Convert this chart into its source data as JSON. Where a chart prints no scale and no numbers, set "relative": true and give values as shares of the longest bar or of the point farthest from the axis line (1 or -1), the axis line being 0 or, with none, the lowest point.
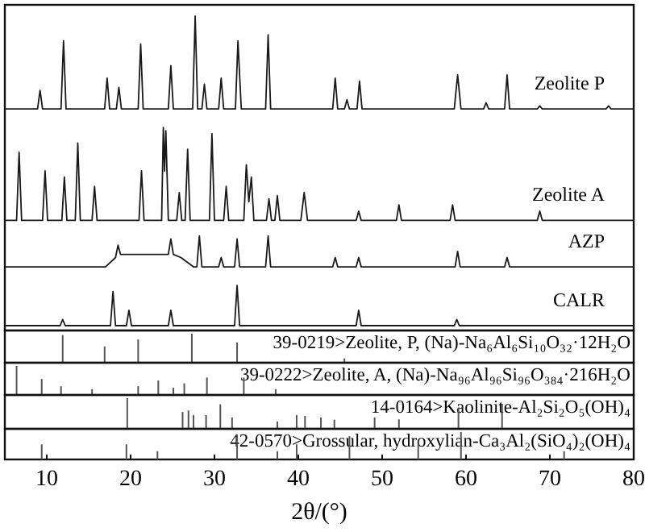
{
  "chart_data": [
    {
      "type": "line",
      "relative": true,
      "xlim": [
        5,
        80
      ],
      "tick_labels": false,
      "series": [
        {
          "name": "Zeolite P",
          "color": "#1a1a1a",
          "x": [
            5,
            8.9,
            9.2,
            9.5,
            11.7,
            12.0,
            12.3,
            16.9,
            17.2,
            17.5,
            18.3,
            18.6,
            18.9,
            20.9,
            21.2,
            21.5,
            24.5,
            24.8,
            25.1,
            27.4,
            27.7,
            28.0,
            28.5,
            28.8,
            29.1,
            30.5,
            30.8,
            31.1,
            32.5,
            32.8,
            33.2,
            36.1,
            36.4,
            36.7,
            44.1,
            44.4,
            44.7,
            45.5,
            45.8,
            46.1,
            47.0,
            47.3,
            47.6,
            58.6,
            59.0,
            59.4,
            62.1,
            62.4,
            62.7,
            64.6,
            64.9,
            65.2,
            68.5,
            68.8,
            69.1,
            76.7,
            77.0,
            77.3,
            80
          ],
          "values": [
            0.7,
            0.7,
            0.76,
            0.7,
            0.7,
            0.92,
            0.7,
            0.7,
            0.8,
            0.7,
            0.7,
            0.77,
            0.7,
            0.7,
            0.91,
            0.7,
            0.7,
            0.84,
            0.7,
            0.7,
            1.0,
            0.7,
            0.7,
            0.78,
            0.7,
            0.7,
            0.8,
            0.7,
            0.7,
            0.92,
            0.7,
            0.7,
            0.94,
            0.7,
            0.7,
            0.8,
            0.7,
            0.7,
            0.73,
            0.7,
            0.7,
            0.79,
            0.7,
            0.7,
            0.81,
            0.7,
            0.7,
            0.72,
            0.7,
            0.7,
            0.81,
            0.7,
            0.7,
            0.71,
            0.7,
            0.7,
            0.71,
            0.7,
            0.7
          ]
        },
        {
          "name": "Zeolite A",
          "color": "#1a1a1a",
          "x": [
            5,
            6.4,
            6.7,
            7.0,
            9.5,
            9.8,
            10.1,
            11.8,
            12.1,
            12.4,
            13.4,
            13.7,
            14.0,
            15.4,
            15.7,
            16.0,
            21.0,
            21.3,
            21.6,
            23.7,
            23.9,
            24.05,
            24.2,
            24.5,
            25.5,
            25.8,
            26.1,
            26.5,
            26.8,
            27.1,
            29.4,
            29.7,
            30.0,
            31.1,
            31.4,
            31.7,
            33.5,
            33.8,
            34.1,
            34.4,
            34.7,
            36.2,
            36.5,
            36.8,
            37.2,
            37.5,
            37.8,
            40.3,
            40.7,
            41.1,
            46.9,
            47.2,
            47.5,
            51.7,
            52.0,
            52.3,
            58.1,
            58.4,
            58.7,
            68.5,
            68.8,
            69.1,
            80
          ],
          "values": [
            0.34,
            0.34,
            0.56,
            0.34,
            0.34,
            0.5,
            0.34,
            0.34,
            0.48,
            0.34,
            0.34,
            0.59,
            0.34,
            0.34,
            0.45,
            0.34,
            0.34,
            0.5,
            0.34,
            0.34,
            0.64,
            0.5,
            0.63,
            0.34,
            0.34,
            0.43,
            0.34,
            0.34,
            0.57,
            0.34,
            0.34,
            0.62,
            0.34,
            0.34,
            0.45,
            0.34,
            0.34,
            0.52,
            0.4,
            0.48,
            0.34,
            0.34,
            0.41,
            0.34,
            0.34,
            0.42,
            0.34,
            0.34,
            0.43,
            0.34,
            0.34,
            0.37,
            0.34,
            0.34,
            0.39,
            0.34,
            0.34,
            0.39,
            0.34,
            0.34,
            0.37,
            0.34,
            0.34
          ]
        },
        {
          "name": "AZP",
          "color": "#1a1a1a",
          "x": [
            5,
            17,
            18.2,
            18.5,
            18.8,
            20,
            24.5,
            24.8,
            25.1,
            26,
            27.5,
            27.9,
            28.2,
            28.5,
            30.5,
            30.8,
            31.1,
            32.4,
            32.7,
            33.0,
            36.1,
            36.4,
            36.7,
            44.1,
            44.4,
            44.7,
            46.9,
            47.2,
            47.5,
            58.7,
            59.0,
            59.3,
            64.6,
            64.9,
            65.2,
            80
          ],
          "values": [
            0.19,
            0.19,
            0.22,
            0.26,
            0.23,
            0.23,
            0.23,
            0.28,
            0.23,
            0.22,
            0.19,
            0.19,
            0.29,
            0.19,
            0.19,
            0.22,
            0.19,
            0.19,
            0.28,
            0.19,
            0.19,
            0.29,
            0.19,
            0.19,
            0.22,
            0.19,
            0.19,
            0.22,
            0.19,
            0.19,
            0.24,
            0.19,
            0.19,
            0.22,
            0.19,
            0.19
          ]
        },
        {
          "name": "CALR",
          "color": "#1a1a1a",
          "x": [
            5,
            11.6,
            11.9,
            12.2,
            17.6,
            17.9,
            18.2,
            19.5,
            19.8,
            20.1,
            24.5,
            24.8,
            25.1,
            32.4,
            32.7,
            33.0,
            46.9,
            47.2,
            47.5,
            58.6,
            58.9,
            59.2,
            80
          ],
          "values": [
            0,
            0,
            0.02,
            0,
            0,
            0.11,
            0,
            0,
            0.05,
            0,
            0,
            0.05,
            0,
            0,
            0.13,
            0,
            0,
            0.05,
            0,
            0,
            0.02,
            0,
            0
          ]
        }
      ]
    },
    {
      "type": "bar",
      "relative": true,
      "xlim": [
        5,
        80
      ],
      "tick_labels": false,
      "title": "39-0219>Zeolite, P, (Na)-Na₆Al₆Si₁₀O₃₂·12H₂O",
      "color": "#555555",
      "x": [
        11.9,
        16.9,
        20.9,
        27.3,
        32.7,
        45.5
      ],
      "values": [
        0.95,
        0.56,
        0.8,
        1,
        0.7,
        0.15
      ]
    },
    {
      "type": "bar",
      "relative": true,
      "xlim": [
        5,
        80
      ],
      "tick_labels": false,
      "title": "39-0222>Zeolite, A, (Na)-Na₉₆Al₉₆Si₉₆O₃₈₄·216H₂O",
      "color": "#555555",
      "x": [
        6.4,
        9.4,
        11.7,
        15.4,
        20.9,
        23.3,
        25.1,
        26.4,
        29.1,
        33.5,
        37.3
      ],
      "values": [
        1,
        0.55,
        0.3,
        0.2,
        0.3,
        0.5,
        0.25,
        0.4,
        0.6,
        0.6,
        0.2
      ]
    },
    {
      "type": "bar",
      "relative": true,
      "xlim": [
        5,
        80
      ],
      "tick_labels": false,
      "title": "14-0164>Kaolinite-Al₂Si₂O₅(OH)₄",
      "color": "#555555",
      "x": [
        19.6,
        26.2,
        26.9,
        27.5,
        29.0,
        30.7,
        32.1,
        37.5,
        39.8,
        40.8,
        42.7,
        44.3,
        49.1,
        52.0,
        59.1,
        64.3
      ],
      "values": [
        1,
        0.55,
        0.6,
        0.45,
        0.45,
        0.8,
        0.37,
        0.24,
        0.45,
        0.42,
        0.37,
        0.3,
        0.37,
        0.31,
        0.7,
        0.8
      ]
    },
    {
      "type": "bar",
      "relative": true,
      "xlim": [
        5,
        80
      ],
      "xticks": [
        10,
        20,
        30,
        40,
        50,
        60,
        70,
        80
      ],
      "tick_labels": "x",
      "xlabel": "2θ/(°)",
      "title": "42-0570>Grossular, hydroxylian-Ca₃Al₂(SiO₄)₂(OH)₄",
      "color": "#555555",
      "x": [
        9.4,
        19.5,
        23.2,
        32.7,
        37.5,
        39.8,
        46.1,
        54.3,
        59.4,
        71.7
      ],
      "values": [
        0.55,
        0.55,
        0.3,
        0.9,
        0.3,
        0.55,
        0.85,
        0.7,
        1,
        0.3
      ]
    }
  ]
}
